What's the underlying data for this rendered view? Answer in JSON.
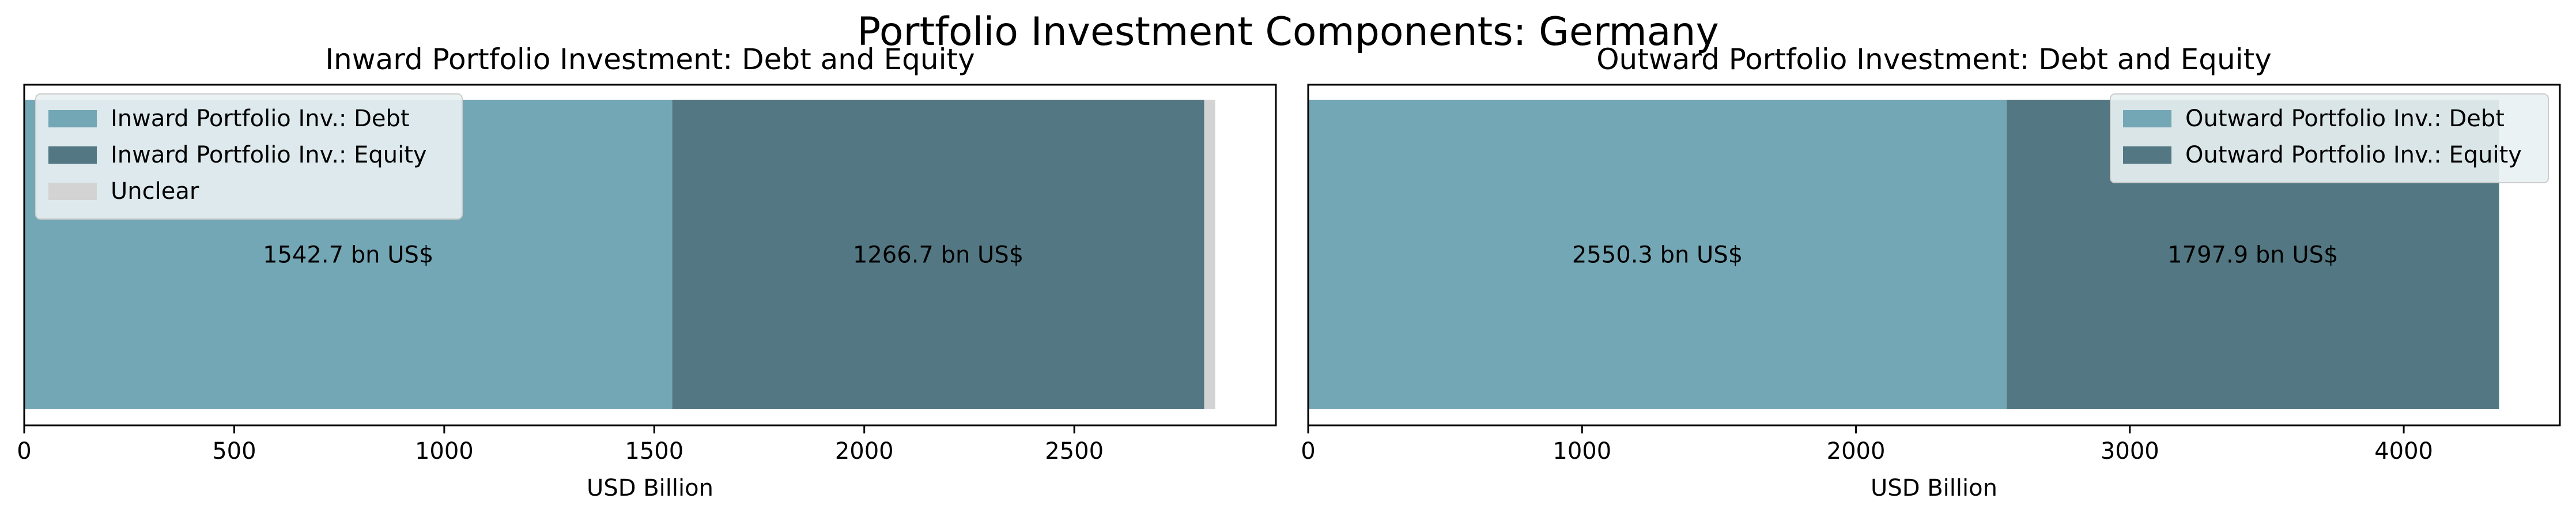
{
  "suptitle": "Portfolio Investment Components: Germany",
  "colors": {
    "debt": "#74a7b5",
    "equity": "#537883",
    "unclear": "#d3d3d3",
    "frame": "#000000",
    "legend_bg": "#e9f1f3"
  },
  "chart_data": [
    {
      "type": "bar",
      "orientation": "horizontal-stacked",
      "title": "Inward Portfolio Investment: Debt and Equity",
      "xlabel": "USD Billion",
      "xlim": [
        0,
        2980
      ],
      "xticks": [
        0,
        500,
        1000,
        1500,
        2000,
        2500
      ],
      "legend_position": "top-left",
      "series": [
        {
          "name": "Inward Portfolio Inv.: Debt",
          "value": 1542.7,
          "label": "1542.7 bn US$",
          "color_key": "debt"
        },
        {
          "name": "Inward Portfolio Inv.: Equity",
          "value": 1266.7,
          "label": "1266.7 bn US$",
          "color_key": "equity"
        },
        {
          "name": "Unclear",
          "value": 26,
          "label": "",
          "color_key": "unclear"
        }
      ]
    },
    {
      "type": "bar",
      "orientation": "horizontal-stacked",
      "title": "Outward Portfolio Investment: Debt and Equity",
      "xlabel": "USD Billion",
      "xlim": [
        0,
        4570
      ],
      "xticks": [
        0,
        1000,
        2000,
        3000,
        4000
      ],
      "legend_position": "top-right",
      "series": [
        {
          "name": "Outward Portfolio Inv.: Debt",
          "value": 2550.3,
          "label": "2550.3 bn US$",
          "color_key": "debt"
        },
        {
          "name": "Outward Portfolio Inv.: Equity",
          "value": 1797.9,
          "label": "1797.9 bn US$",
          "color_key": "equity"
        }
      ]
    }
  ]
}
